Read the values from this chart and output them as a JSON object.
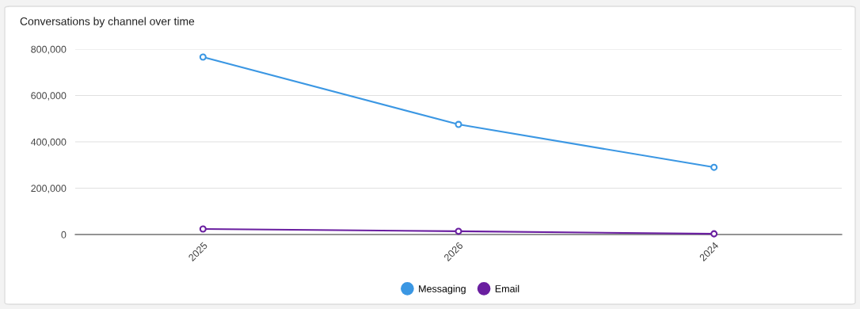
{
  "chart_data": {
    "type": "line",
    "title": "Conversations by channel over time",
    "categories": [
      "2025",
      "2026",
      "2024"
    ],
    "series": [
      {
        "name": "Messaging",
        "color": "#3b97e3",
        "values": [
          766000,
          475000,
          290000
        ]
      },
      {
        "name": "Email",
        "color": "#6a1fa0",
        "values": [
          24000,
          14000,
          3000
        ]
      }
    ],
    "ylim": [
      0,
      800000
    ],
    "yticks": [
      {
        "value": 0,
        "label": "0"
      },
      {
        "value": 200000,
        "label": "200,000"
      },
      {
        "value": 400000,
        "label": "400,000"
      },
      {
        "value": 600000,
        "label": "600,000"
      },
      {
        "value": 800000,
        "label": "800,000"
      }
    ],
    "grid": "y",
    "legend": "bottom",
    "marker": "circle",
    "line_style": "solid"
  }
}
